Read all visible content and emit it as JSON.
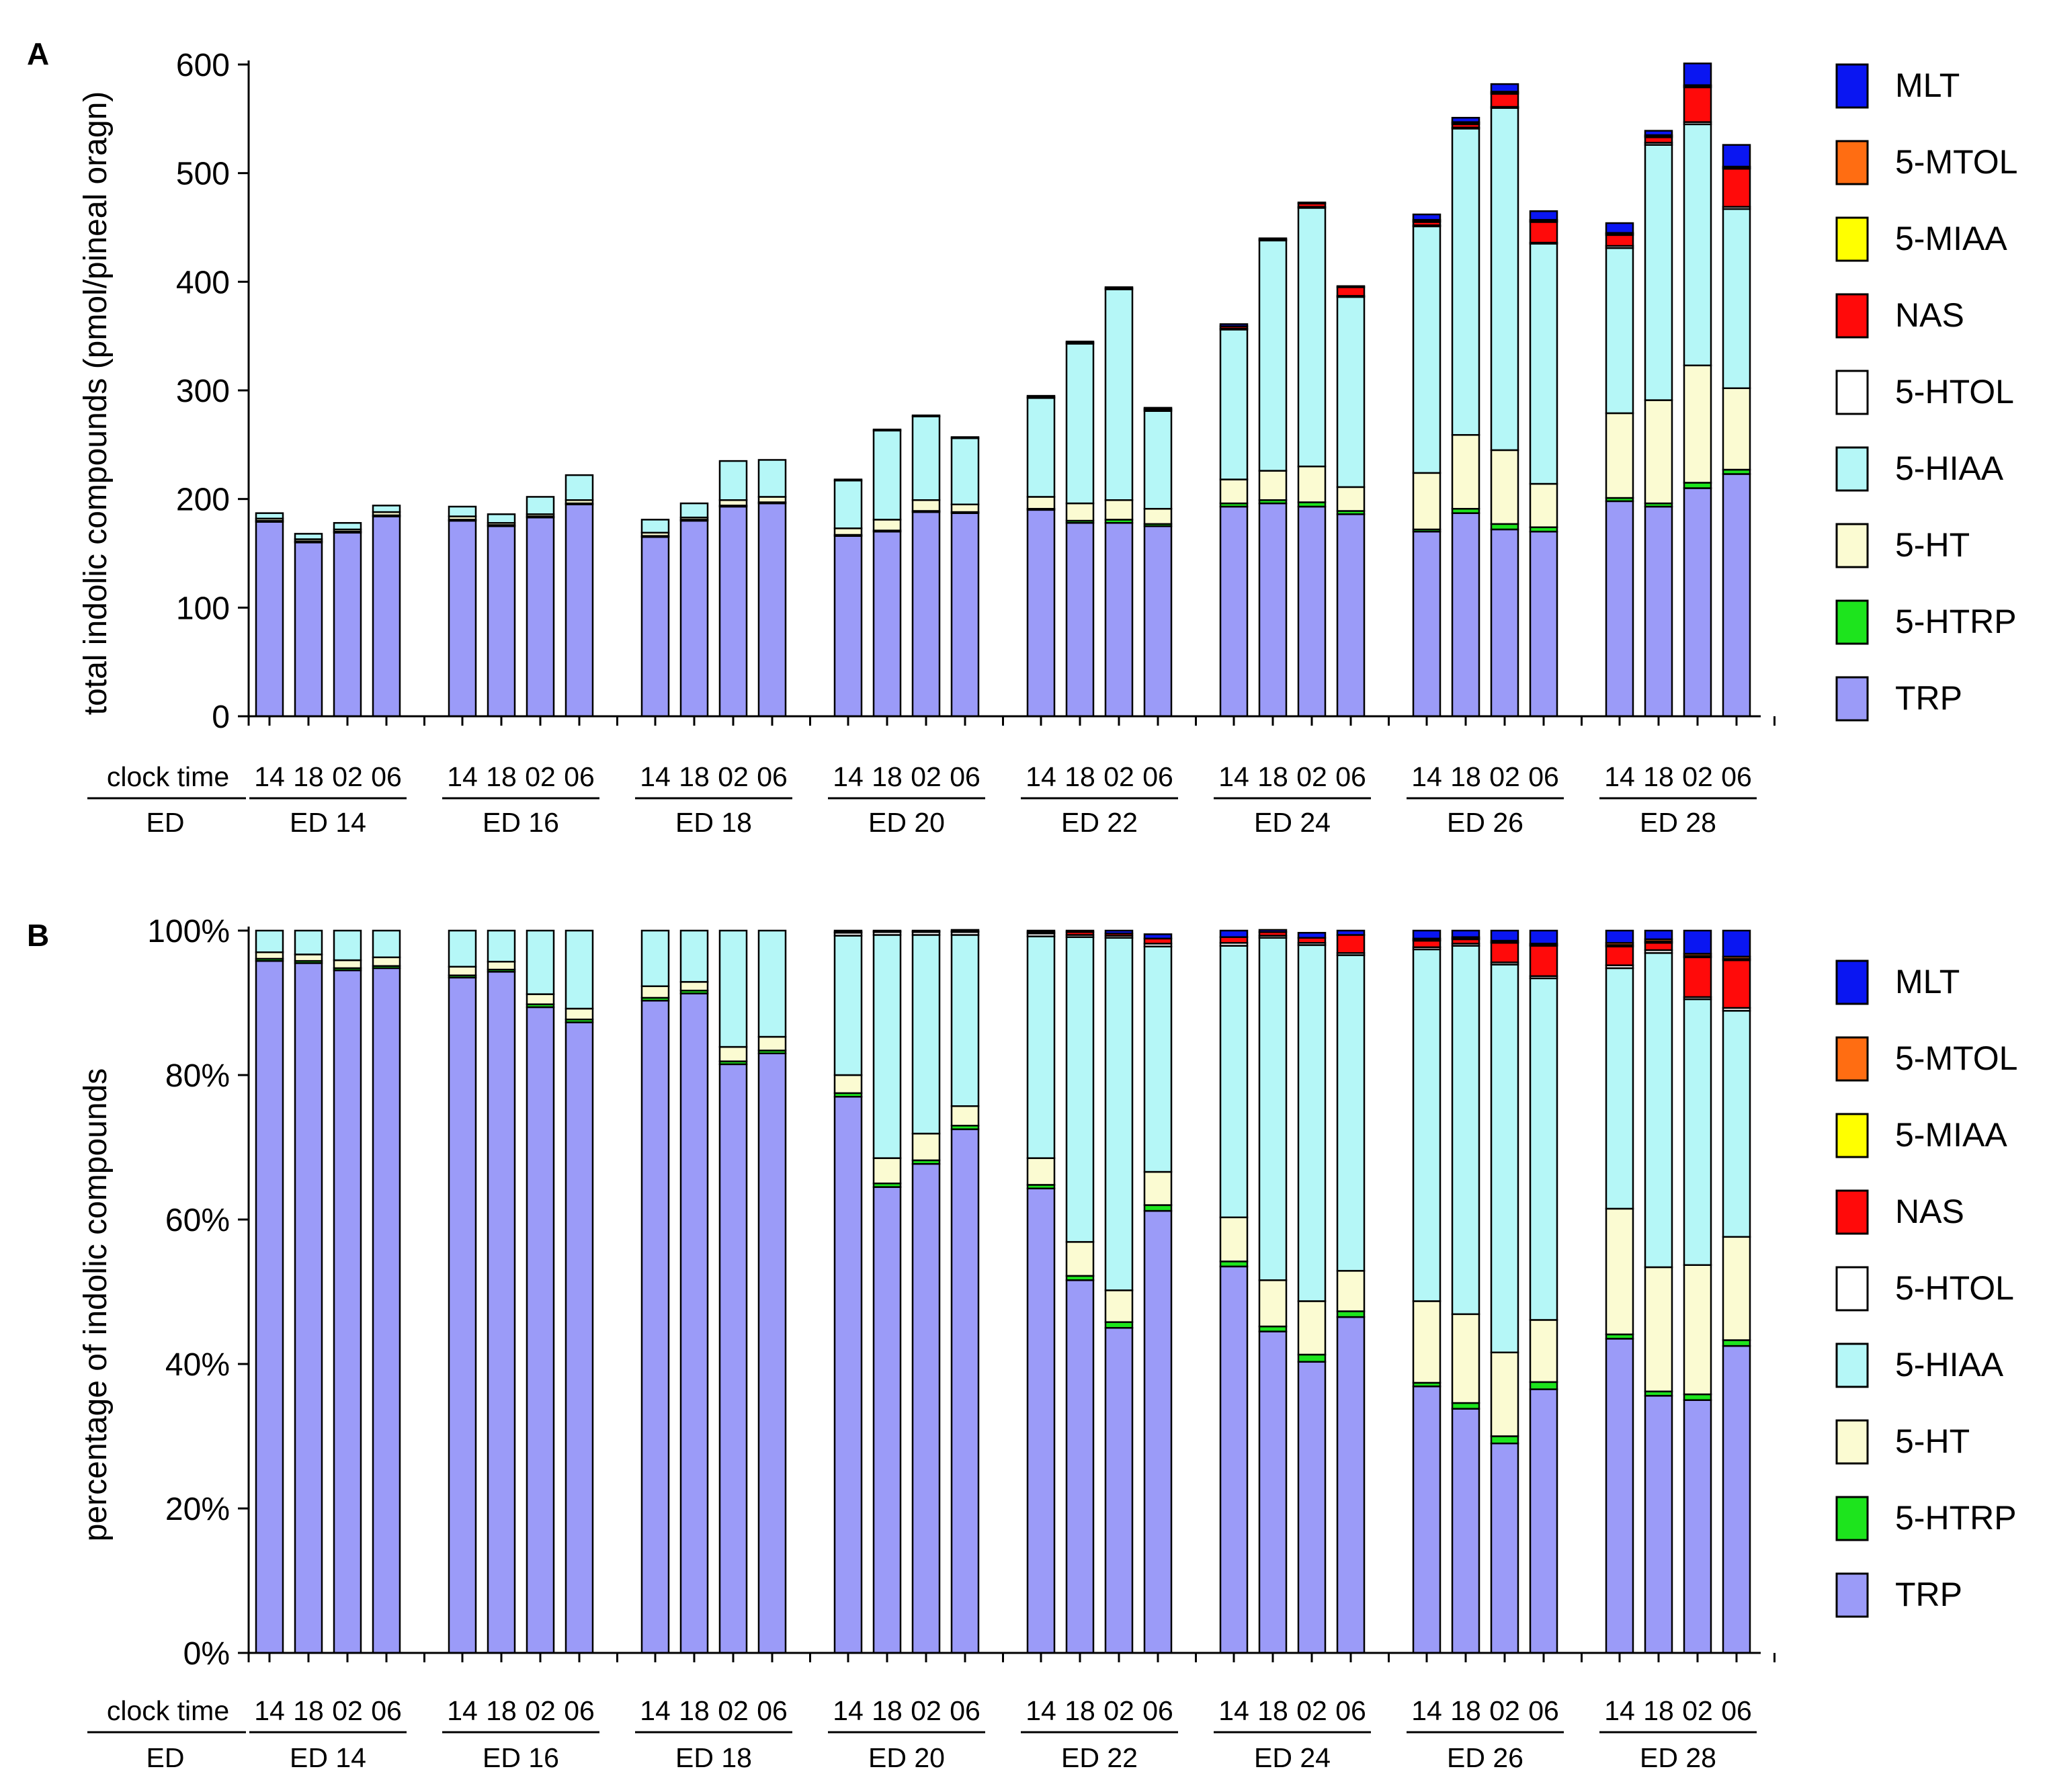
{
  "colors": {
    "TRP": "#9b9bf8",
    "5-HTRP": "#1de41d",
    "5-HT": "#fbfbd2",
    "5-HIAA": "#b5f7f7",
    "5-HTOL": "#ffffff",
    "NAS": "#ff0a0a",
    "5-MIAA": "#ffff00",
    "5-MTOL": "#ff6d12",
    "MLT": "#0a16f2"
  },
  "clock_label": "clock time",
  "ed_label": "ED",
  "chart_data": [
    {
      "panel": "A",
      "type": "bar",
      "stacked": true,
      "ylabel": "total indolic compounds (pmol/pineal oragn)",
      "ylim": [
        0,
        600
      ],
      "yticks": [
        "0",
        "100",
        "200",
        "300",
        "400",
        "500",
        "600"
      ],
      "groups": [
        {
          "label": "ED 14",
          "ticks": [
            "14",
            "18",
            "02",
            "06"
          ]
        },
        {
          "label": "ED 16",
          "ticks": [
            "14",
            "18",
            "02",
            "06"
          ]
        },
        {
          "label": "ED 18",
          "ticks": [
            "14",
            "18",
            "02",
            "06"
          ]
        },
        {
          "label": "ED 20",
          "ticks": [
            "14",
            "18",
            "02",
            "06"
          ]
        },
        {
          "label": "ED 22",
          "ticks": [
            "14",
            "18",
            "02",
            "06"
          ]
        },
        {
          "label": "ED 24",
          "ticks": [
            "14",
            "18",
            "02",
            "06"
          ]
        },
        {
          "label": "ED 26",
          "ticks": [
            "14",
            "18",
            "02",
            "06"
          ]
        },
        {
          "label": "ED 28",
          "ticks": [
            "14",
            "18",
            "02",
            "06"
          ]
        }
      ],
      "legend": [
        "MLT",
        "5-MTOL",
        "5-MIAA",
        "NAS",
        "5-HTOL",
        "5-HIAA",
        "5-HT",
        "5-HTRP",
        "TRP"
      ],
      "series": [
        {
          "name": "TRP",
          "values": [
            179,
            160,
            169,
            184,
            180,
            175,
            183,
            195,
            165,
            180,
            193,
            196,
            166,
            170,
            188,
            187,
            190,
            178,
            178,
            175,
            193,
            196,
            193,
            186,
            170,
            187,
            172,
            170,
            198,
            193,
            210,
            223
          ]
        },
        {
          "name": "5-HTRP",
          "values": [
            1,
            1,
            1,
            1,
            1,
            1,
            1,
            1,
            1,
            1,
            1,
            1,
            1,
            1,
            1,
            1,
            1,
            2,
            3,
            2,
            3,
            3,
            4,
            3,
            2,
            4,
            5,
            4,
            3,
            3,
            5,
            4
          ]
        },
        {
          "name": "5-HT",
          "values": [
            2,
            2,
            2,
            3,
            3,
            2,
            2,
            3,
            3,
            2,
            5,
            5,
            6,
            10,
            10,
            7,
            11,
            16,
            18,
            14,
            22,
            27,
            33,
            22,
            52,
            68,
            68,
            40,
            78,
            95,
            108,
            75
          ]
        },
        {
          "name": "5-HIAA",
          "values": [
            5,
            5,
            6,
            6,
            9,
            8,
            16,
            23,
            12,
            13,
            36,
            34,
            44,
            82,
            77,
            61,
            91,
            147,
            194,
            90,
            138,
            212,
            238,
            175,
            227,
            282,
            315,
            221,
            152,
            235,
            222,
            165
          ]
        },
        {
          "name": "5-HTOL",
          "values": [
            0,
            0,
            0,
            0,
            0,
            0,
            0,
            0,
            0,
            0,
            0,
            0,
            1,
            1,
            1,
            1,
            1,
            1,
            1,
            1,
            1,
            1,
            1,
            1,
            1,
            1,
            1,
            1,
            2,
            2,
            2,
            2
          ]
        },
        {
          "name": "NAS",
          "values": [
            0,
            0,
            0,
            0,
            0,
            0,
            0,
            0,
            0,
            0,
            0,
            0,
            0,
            0,
            0,
            0,
            1,
            1,
            1,
            1,
            2,
            1,
            3,
            8,
            3,
            3,
            12,
            19,
            10,
            5,
            32,
            35
          ]
        },
        {
          "name": "5-MIAA",
          "values": [
            0,
            0,
            0,
            0,
            0,
            0,
            0,
            0,
            0,
            0,
            0,
            0,
            0,
            0,
            0,
            0,
            0,
            0,
            0,
            0,
            0,
            0,
            0,
            0,
            1,
            1,
            1,
            1,
            1,
            1,
            1,
            1
          ]
        },
        {
          "name": "5-MTOL",
          "values": [
            0,
            0,
            0,
            0,
            0,
            0,
            0,
            0,
            0,
            0,
            0,
            0,
            0,
            0,
            0,
            0,
            0,
            0,
            0,
            0,
            0,
            0,
            0,
            0,
            1,
            1,
            1,
            1,
            1,
            1,
            1,
            1
          ]
        },
        {
          "name": "MLT",
          "values": [
            0,
            0,
            0,
            0,
            0,
            0,
            0,
            0,
            0,
            0,
            0,
            0,
            0,
            0,
            0,
            0,
            0,
            0,
            0,
            1,
            2,
            0,
            1,
            1,
            5,
            4,
            7,
            8,
            9,
            4,
            20,
            20
          ]
        }
      ]
    },
    {
      "panel": "B",
      "type": "bar",
      "stacked": true,
      "ylabel": "percentage of indolic compounds",
      "ylim": [
        0,
        100
      ],
      "yticks": [
        "0%",
        "20%",
        "40%",
        "60%",
        "80%",
        "100%"
      ],
      "groups": [
        {
          "label": "ED 14",
          "ticks": [
            "14",
            "18",
            "02",
            "06"
          ]
        },
        {
          "label": "ED 16",
          "ticks": [
            "14",
            "18",
            "02",
            "06"
          ]
        },
        {
          "label": "ED 18",
          "ticks": [
            "14",
            "18",
            "02",
            "06"
          ]
        },
        {
          "label": "ED 20",
          "ticks": [
            "14",
            "18",
            "02",
            "06"
          ]
        },
        {
          "label": "ED 22",
          "ticks": [
            "14",
            "18",
            "02",
            "06"
          ]
        },
        {
          "label": "ED 24",
          "ticks": [
            "14",
            "18",
            "02",
            "06"
          ]
        },
        {
          "label": "ED 26",
          "ticks": [
            "14",
            "18",
            "02",
            "06"
          ]
        },
        {
          "label": "ED 28",
          "ticks": [
            "14",
            "18",
            "02",
            "06"
          ]
        }
      ],
      "legend": [
        "MLT",
        "5-MTOL",
        "5-MIAA",
        "NAS",
        "5-HTOL",
        "5-HIAA",
        "5-HT",
        "5-HTRP",
        "TRP"
      ],
      "series": [
        {
          "name": "TRP",
          "values": [
            95.8,
            95.5,
            94.5,
            94.8,
            93.5,
            94.3,
            89.4,
            87.3,
            90.3,
            91.3,
            81.5,
            83.0,
            77.0,
            64.5,
            67.7,
            72.5,
            64.3,
            51.6,
            45.0,
            61.2,
            53.5,
            44.5,
            40.3,
            46.5,
            36.9,
            33.8,
            29.0,
            36.5,
            43.5,
            35.6,
            35.0,
            42.5
          ]
        },
        {
          "name": "5-HTRP",
          "values": [
            0.3,
            0.3,
            0.3,
            0.3,
            0.3,
            0.3,
            0.4,
            0.4,
            0.4,
            0.4,
            0.4,
            0.4,
            0.5,
            0.5,
            0.5,
            0.5,
            0.5,
            0.6,
            0.8,
            0.8,
            0.7,
            0.7,
            1.0,
            0.8,
            0.5,
            0.8,
            1.0,
            1.0,
            0.6,
            0.6,
            0.8,
            0.8
          ]
        },
        {
          "name": "5-HT",
          "values": [
            0.9,
            0.9,
            1.1,
            1.2,
            1.2,
            1.1,
            1.4,
            1.5,
            1.6,
            1.2,
            2.0,
            1.9,
            2.5,
            3.5,
            3.7,
            2.7,
            3.7,
            4.7,
            4.4,
            4.6,
            6.1,
            6.4,
            7.4,
            5.6,
            11.3,
            12.3,
            11.6,
            8.6,
            17.4,
            17.2,
            17.9,
            14.3
          ]
        },
        {
          "name": "5-HIAA",
          "values": [
            3.0,
            3.3,
            4.1,
            3.7,
            5.0,
            4.3,
            8.8,
            10.8,
            7.7,
            7.1,
            16.1,
            14.7,
            19.3,
            30.9,
            27.5,
            23.7,
            30.7,
            42.2,
            48.8,
            31.2,
            37.6,
            47.4,
            49.3,
            43.7,
            48.7,
            51.0,
            53.7,
            47.3,
            33.3,
            43.5,
            36.8,
            31.3
          ]
        },
        {
          "name": "5-HTOL",
          "values": [
            0,
            0,
            0,
            0,
            0,
            0,
            0,
            0,
            0,
            0,
            0,
            0,
            0.4,
            0.4,
            0.4,
            0.4,
            0.4,
            0.3,
            0.3,
            0.4,
            0.4,
            0.3,
            0.3,
            0.3,
            0.3,
            0.3,
            0.3,
            0.3,
            0.4,
            0.4,
            0.3,
            0.4
          ]
        },
        {
          "name": "NAS",
          "values": [
            0,
            0,
            0,
            0,
            0,
            0,
            0,
            0,
            0,
            0,
            0,
            0,
            0.1,
            0.1,
            0.1,
            0.1,
            0.2,
            0.4,
            0.3,
            0.7,
            0.8,
            0.5,
            0.7,
            2.5,
            0.9,
            0.6,
            2.7,
            4.2,
            2.6,
            1.0,
            5.5,
            6.6
          ]
        },
        {
          "name": "5-MIAA",
          "values": [
            0,
            0,
            0,
            0,
            0,
            0,
            0,
            0,
            0,
            0,
            0,
            0,
            0,
            0,
            0,
            0,
            0,
            0,
            0,
            0,
            0,
            0,
            0,
            0,
            0.1,
            0.1,
            0.1,
            0.1,
            0.2,
            0.2,
            0.2,
            0.2
          ]
        },
        {
          "name": "5-MTOL",
          "values": [
            0,
            0,
            0,
            0,
            0,
            0,
            0,
            0,
            0,
            0,
            0,
            0,
            0,
            0,
            0,
            0,
            0,
            0,
            0,
            0,
            0,
            0,
            0,
            0,
            0.2,
            0.2,
            0.2,
            0.2,
            0.3,
            0.3,
            0.3,
            0.3
          ]
        },
        {
          "name": "MLT",
          "values": [
            0,
            0,
            0,
            0,
            0,
            0,
            0,
            0,
            0,
            0,
            0,
            0,
            0.2,
            0.1,
            0.1,
            0.2,
            0.2,
            0.2,
            0.4,
            0.6,
            0.9,
            0.3,
            0.7,
            0.6,
            1.1,
            0.9,
            1.4,
            1.8,
            1.7,
            1.2,
            3.2,
            3.6
          ]
        }
      ]
    }
  ]
}
